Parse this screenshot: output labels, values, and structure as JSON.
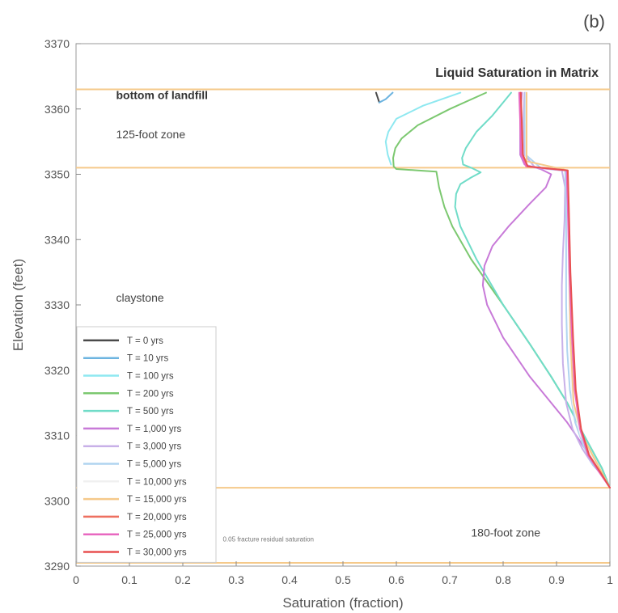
{
  "panel_label": "(b)",
  "chart_data": {
    "type": "line",
    "title": "Liquid Saturation in Matrix",
    "xlabel": "Saturation (fraction)",
    "ylabel": "Elevation (feet)",
    "xlim": [
      0,
      1
    ],
    "ylim": [
      3290,
      3370
    ],
    "xticks": [
      0,
      0.1,
      0.2,
      0.3,
      0.4,
      0.5,
      0.6,
      0.7,
      0.8,
      0.9,
      1
    ],
    "xtick_labels": [
      "0",
      "0.1",
      "0.2",
      "0.3",
      "0.4",
      "0.5",
      "0.6",
      "0.7",
      "0.8",
      "0.9",
      "1"
    ],
    "yticks": [
      3290,
      3300,
      3310,
      3320,
      3330,
      3340,
      3350,
      3360,
      3370
    ],
    "ytick_labels": [
      "3290",
      "3300",
      "3310",
      "3320",
      "3330",
      "3340",
      "3350",
      "3360",
      "3370"
    ],
    "grid": false,
    "legend_position": "bottom-left",
    "boundary_lines": [
      {
        "y": 3363,
        "color": "#f5c98a"
      },
      {
        "y": 3351,
        "color": "#f5c98a"
      },
      {
        "y": 3302,
        "color": "#f5c98a"
      },
      {
        "y": 3290.5,
        "color": "#f5c98a"
      }
    ],
    "annotations": [
      {
        "text": "bottom of landfill",
        "x": 0.075,
        "y": 3361.5,
        "style": "bold"
      },
      {
        "text": "125-foot zone",
        "x": 0.075,
        "y": 3355.5,
        "style": "normal"
      },
      {
        "text": "claystone",
        "x": 0.075,
        "y": 3330.5,
        "style": "normal"
      },
      {
        "text": "180-foot zone",
        "x": 0.74,
        "y": 3294.5,
        "style": "normal"
      },
      {
        "text": "0.05 fracture residual saturation",
        "x": 0.275,
        "y": 3293.8,
        "style": "small"
      }
    ],
    "series": [
      {
        "name": "T = 0 yrs",
        "color": "#4a4a4a",
        "x": [
          0.562,
          0.568
        ],
        "y": [
          3362.5,
          3361.0
        ]
      },
      {
        "name": "T = 10 yrs",
        "color": "#6db4e0",
        "x": [
          0.593,
          0.58,
          0.568
        ],
        "y": [
          3362.5,
          3361.5,
          3361.0
        ]
      },
      {
        "name": "T = 100 yrs",
        "color": "#8ee8f0",
        "x": [
          0.72,
          0.65,
          0.6,
          0.585,
          0.58,
          0.584,
          0.59
        ],
        "y": [
          3362.5,
          3360.5,
          3358.5,
          3356.5,
          3355.0,
          3353.0,
          3351.5
        ]
      },
      {
        "name": "T = 200 yrs",
        "color": "#7cc870",
        "x": [
          0.768,
          0.7,
          0.64,
          0.61,
          0.598,
          0.594,
          0.595,
          0.6,
          0.64,
          0.675,
          0.68,
          0.69,
          0.705,
          0.74,
          0.8,
          0.85,
          0.89,
          0.92,
          0.945,
          0.965,
          0.985,
          1.0
        ],
        "y": [
          3362.5,
          3360.0,
          3357.5,
          3355.5,
          3354.0,
          3352.5,
          3351.2,
          3350.8,
          3350.6,
          3350.4,
          3348.0,
          3345.0,
          3342.0,
          3337.0,
          3330.0,
          3324.0,
          3319.0,
          3315.0,
          3311.0,
          3308.0,
          3305.0,
          3302.0
        ]
      },
      {
        "name": "T = 500 yrs",
        "color": "#70dcc8",
        "x": [
          0.815,
          0.8,
          0.78,
          0.75,
          0.73,
          0.723,
          0.725,
          0.74,
          0.758,
          0.74,
          0.72,
          0.712,
          0.71,
          0.72,
          0.75,
          0.8,
          0.85,
          0.89,
          0.92,
          0.945,
          0.965,
          0.985,
          1.0
        ],
        "y": [
          3362.5,
          3361.0,
          3359.0,
          3356.5,
          3354.0,
          3352.5,
          3351.5,
          3351.0,
          3350.3,
          3349.5,
          3348.5,
          3347.0,
          3345.0,
          3342.0,
          3337.0,
          3330.0,
          3324.0,
          3319.0,
          3315.0,
          3311.0,
          3308.0,
          3305.0,
          3302.0
        ]
      },
      {
        "name": "T = 1,000 yrs",
        "color": "#c87ad8",
        "x": [
          0.835,
          0.832,
          0.832,
          0.84,
          0.87,
          0.89,
          0.88,
          0.85,
          0.81,
          0.78,
          0.765,
          0.762,
          0.77,
          0.8,
          0.85,
          0.89,
          0.92,
          0.945,
          0.965,
          0.985,
          1.0
        ],
        "y": [
          3362.5,
          3358.0,
          3353.0,
          3351.5,
          3350.8,
          3350.0,
          3348.0,
          3345.5,
          3342.0,
          3339.0,
          3336.0,
          3333.0,
          3330.0,
          3325.0,
          3319.0,
          3315.0,
          3312.0,
          3309.0,
          3306.5,
          3304.0,
          3302.0
        ]
      },
      {
        "name": "T = 3,000 yrs",
        "color": "#c8b0e8",
        "x": [
          0.84,
          0.838,
          0.84,
          0.86,
          0.91,
          0.916,
          0.915,
          0.912,
          0.91,
          0.91,
          0.912,
          0.918,
          0.93,
          0.948,
          0.968,
          0.985,
          1.0
        ],
        "y": [
          3362.5,
          3358.0,
          3353.0,
          3351.0,
          3350.6,
          3348.0,
          3343.0,
          3338.0,
          3333.0,
          3327.0,
          3321.0,
          3315.0,
          3311.0,
          3308.0,
          3305.5,
          3304.0,
          3302.0
        ]
      },
      {
        "name": "T = 5,000 yrs",
        "color": "#b0d4f0",
        "x": [
          0.842,
          0.84,
          0.842,
          0.87,
          0.916,
          0.918,
          0.918,
          0.918,
          0.92,
          0.925,
          0.935,
          0.95,
          0.968,
          0.985,
          1.0
        ],
        "y": [
          3362.5,
          3358.0,
          3353.0,
          3351.0,
          3350.6,
          3346.0,
          3338.0,
          3330.0,
          3323.0,
          3317.0,
          3312.0,
          3308.5,
          3305.5,
          3304.0,
          3302.0
        ]
      },
      {
        "name": "T = 10,000 yrs",
        "color": "#f0f0f0",
        "x": [
          0.843,
          0.843,
          0.92,
          0.922,
          0.925,
          0.93,
          0.945,
          1.0
        ],
        "y": [
          3362.5,
          3352.0,
          3350.6,
          3340.0,
          3325.0,
          3315.0,
          3310.0,
          3302.0
        ]
      },
      {
        "name": "T = 15,000 yrs",
        "color": "#f5c98a",
        "x": [
          0.844,
          0.844,
          0.921,
          0.923,
          0.926,
          0.932,
          0.948,
          1.0
        ],
        "y": [
          3362.5,
          3352.0,
          3350.6,
          3340.0,
          3325.0,
          3315.0,
          3310.0,
          3302.0
        ]
      },
      {
        "name": "T = 20,000 yrs",
        "color": "#ee7060",
        "x": [
          0.832,
          0.834,
          0.836,
          0.845,
          0.92,
          0.922,
          0.925,
          0.93,
          0.935,
          0.945,
          0.96,
          0.98,
          1.0
        ],
        "y": [
          3362.5,
          3358.0,
          3353.0,
          3351.2,
          3350.6,
          3345.0,
          3335.0,
          3325.0,
          3317.0,
          3311.0,
          3307.0,
          3304.5,
          3302.0
        ]
      },
      {
        "name": "T = 25,000 yrs",
        "color": "#e868c0",
        "x": [
          0.83,
          0.832,
          0.834,
          0.843,
          0.919,
          0.921,
          0.924,
          0.929,
          0.934,
          0.944,
          0.959,
          0.979,
          1.0
        ],
        "y": [
          3362.5,
          3358.0,
          3353.0,
          3351.2,
          3350.6,
          3345.0,
          3335.0,
          3325.0,
          3317.0,
          3311.0,
          3307.0,
          3304.5,
          3302.0
        ]
      },
      {
        "name": "T = 30,000 yrs",
        "color": "#e85050",
        "x": [
          0.833,
          0.835,
          0.837,
          0.846,
          0.921,
          0.923,
          0.926,
          0.931,
          0.936,
          0.946,
          0.961,
          0.981,
          1.0
        ],
        "y": [
          3362.5,
          3358.0,
          3353.0,
          3351.2,
          3350.6,
          3345.0,
          3335.0,
          3325.0,
          3317.0,
          3311.0,
          3307.0,
          3304.5,
          3302.0
        ]
      }
    ]
  }
}
